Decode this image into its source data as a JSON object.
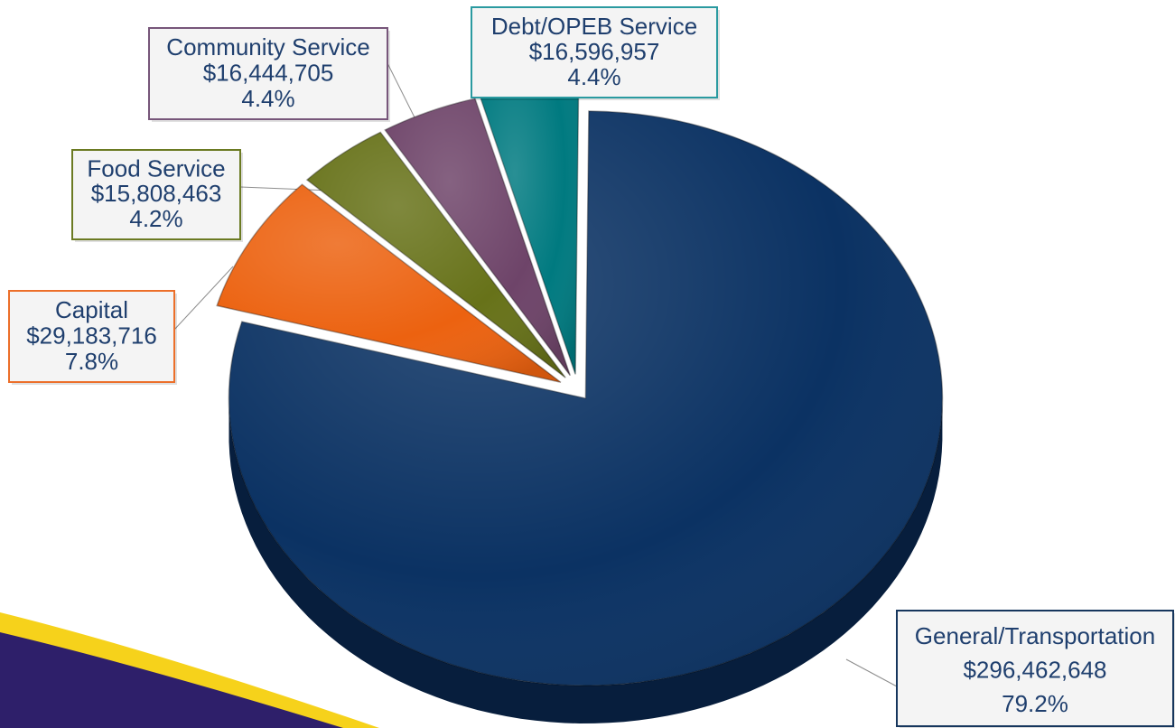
{
  "chart_data": {
    "type": "pie",
    "title": "",
    "slices": [
      {
        "name": "General/Transportation",
        "value": 296462648,
        "value_label": "$296,462,648",
        "percent": 79.2,
        "percent_label": "79.2%",
        "color": "#0b3263",
        "side_color": "#071e3d",
        "box_border": "#16365d"
      },
      {
        "name": "Capital",
        "value": 29183716,
        "value_label": "$29,183,716",
        "percent": 7.8,
        "percent_label": "7.8%",
        "color": "#ec6210",
        "side_color": "#6e2a05",
        "box_border": "#ec6f2a"
      },
      {
        "name": "Food Service",
        "value": 15808463,
        "value_label": "$15,808,463",
        "percent": 4.2,
        "percent_label": "4.2%",
        "color": "#677219",
        "side_color": "#3a420b",
        "box_border": "#6b7a22"
      },
      {
        "name": "Community Service",
        "value": 16444705,
        "value_label": "$16,444,705",
        "percent": 4.4,
        "percent_label": "4.4%",
        "color": "#6e4469",
        "side_color": "#3f2239",
        "box_border": "#77567a"
      },
      {
        "name": "Debt/OPEB Service",
        "value": 16596957,
        "value_label": "$16,596,957",
        "percent": 4.4,
        "percent_label": "4.4%",
        "color": "#007a80",
        "side_color": "#00474b",
        "box_border": "#2a9aa0"
      }
    ]
  },
  "colors": {
    "label_text": "#1f3f6e",
    "label_bg": "#f4f4f4",
    "leader_line": "#8c8c8c",
    "decor_purple": "#2e1f6a",
    "decor_yellow": "#f6d21b"
  }
}
